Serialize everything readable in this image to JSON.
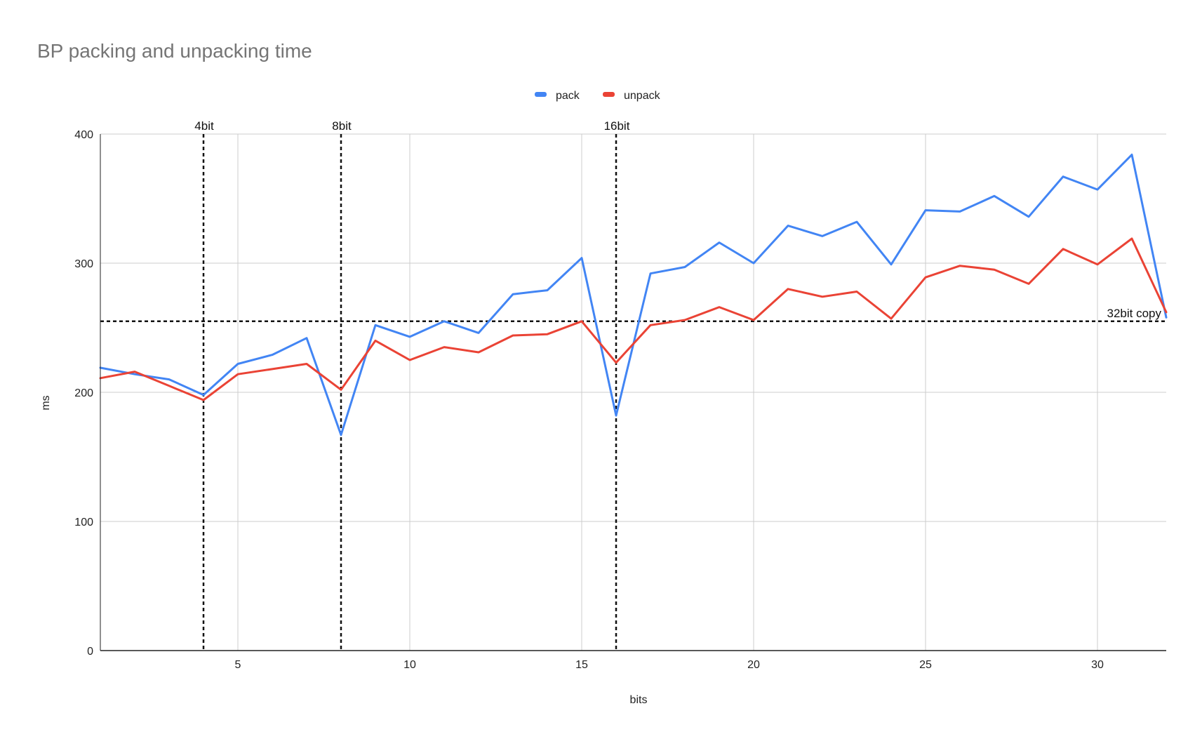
{
  "chart_data": {
    "type": "line",
    "title": "BP packing and unpacking time",
    "xlabel": "bits",
    "ylabel": "ms",
    "xlim": [
      1,
      32
    ],
    "ylim": [
      0,
      400
    ],
    "x_ticks": [
      5,
      10,
      15,
      20,
      25,
      30
    ],
    "y_ticks": [
      0,
      100,
      200,
      300,
      400
    ],
    "grid": true,
    "legend_position": "top-center",
    "x": [
      1,
      2,
      3,
      4,
      5,
      6,
      7,
      8,
      9,
      10,
      11,
      12,
      13,
      14,
      15,
      16,
      17,
      18,
      19,
      20,
      21,
      22,
      23,
      24,
      25,
      26,
      27,
      28,
      29,
      30,
      31,
      32
    ],
    "series": [
      {
        "name": "pack",
        "color": "#4285f4",
        "values": [
          219,
          214,
          210,
          198,
          222,
          229,
          242,
          167,
          252,
          243,
          255,
          246,
          276,
          279,
          304,
          182,
          292,
          297,
          316,
          300,
          329,
          321,
          332,
          299,
          341,
          340,
          352,
          336,
          367,
          357,
          384,
          258
        ]
      },
      {
        "name": "unpack",
        "color": "#ea4335",
        "values": [
          211,
          216,
          205,
          194,
          214,
          218,
          222,
          202,
          240,
          225,
          235,
          231,
          244,
          245,
          255,
          223,
          252,
          256,
          266,
          256,
          280,
          274,
          278,
          257,
          289,
          298,
          295,
          284,
          311,
          299,
          319,
          262
        ]
      }
    ],
    "vertical_markers": [
      {
        "x": 4,
        "label": "4bit"
      },
      {
        "x": 8,
        "label": "8bit"
      },
      {
        "x": 16,
        "label": "16bit"
      }
    ],
    "horizontal_marker": {
      "y": 255,
      "label": "32bit copy"
    }
  }
}
